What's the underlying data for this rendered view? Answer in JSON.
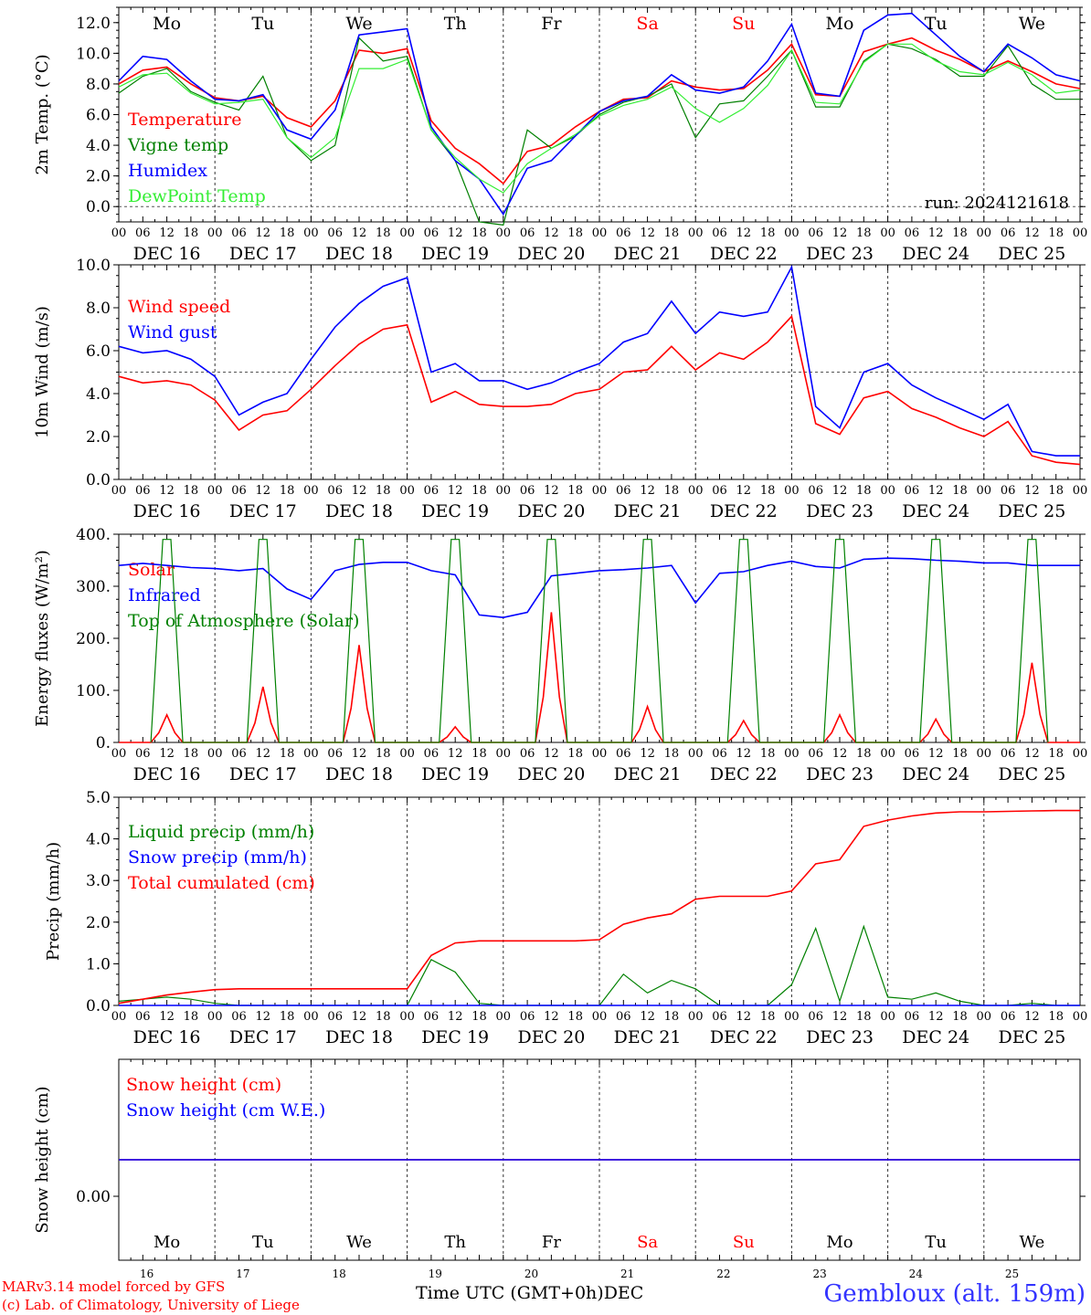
{
  "meta": {
    "station": "Gembloux (alt. 159m)",
    "credit_lines": [
      "MARv3.14 model forced by GFS",
      "(c) Lab. of Climatology, University of Liege"
    ],
    "time_axis_label": "Time UTC (GMT+0h)",
    "month_label": "DEC",
    "run_label": "run: 2024121618"
  },
  "days": {
    "weekday_labels": [
      "Mo",
      "Tu",
      "We",
      "Th",
      "Fr",
      "Sa",
      "Su",
      "Mo",
      "Tu",
      "We"
    ],
    "weekend_flags": [
      false,
      false,
      false,
      false,
      false,
      true,
      true,
      false,
      false,
      false
    ],
    "date_labels": [
      "DEC 16",
      "DEC 17",
      "DEC 18",
      "DEC 19",
      "DEC 20",
      "DEC 21",
      "DEC 22",
      "DEC 23",
      "DEC 24",
      "DEC 25"
    ],
    "day_numbers": [
      "16",
      "17",
      "18",
      "19",
      "20",
      "21",
      "22",
      "23",
      "24",
      "25"
    ],
    "hour_tick_labels": [
      "00",
      "06",
      "12",
      "18"
    ],
    "final_tick_label": "00"
  },
  "colors": {
    "red": "#ff0000",
    "green": "#008000",
    "blue": "#0000ff",
    "lightgreen": "#33ee33",
    "weekend": "#ff0000",
    "station": "#3333ff"
  },
  "chart_data": [
    {
      "id": "temperature",
      "type": "line",
      "ylabel": "2m Temp. (°C)",
      "ylim": [
        -1.0,
        13.0
      ],
      "y_ticks": [
        "0.0",
        "2.0",
        "4.0",
        "6.0",
        "8.0",
        "10.0",
        "12.0"
      ],
      "y_tick_values": [
        0,
        2,
        4,
        6,
        8,
        10,
        12
      ],
      "reference_line": 0,
      "x_hours": [
        0,
        6,
        12,
        18,
        24,
        30,
        36,
        42,
        48,
        54,
        60,
        66,
        72,
        78,
        84,
        90,
        96,
        102,
        108,
        114,
        120,
        126,
        132,
        138,
        144,
        150,
        156,
        162,
        168,
        174,
        180,
        186,
        192,
        198,
        204,
        210,
        216,
        222,
        228,
        234,
        240
      ],
      "series": [
        {
          "name": "Temperature",
          "color": "red",
          "values": [
            8.0,
            8.9,
            9.1,
            8.0,
            7.1,
            6.9,
            7.2,
            5.8,
            5.2,
            6.9,
            10.2,
            10.0,
            10.3,
            5.6,
            3.8,
            2.8,
            1.5,
            3.6,
            4.0,
            5.2,
            6.2,
            7.0,
            7.1,
            8.2,
            7.8,
            7.6,
            7.7,
            8.9,
            10.6,
            7.3,
            7.2,
            10.1,
            10.6,
            11.0,
            10.2,
            9.6,
            8.8,
            9.5,
            8.8,
            8.0,
            7.7
          ]
        },
        {
          "name": "Vigne temp",
          "color": "green",
          "values": [
            7.4,
            8.5,
            9.0,
            7.5,
            6.8,
            6.3,
            8.5,
            4.5,
            3.0,
            4.0,
            11.0,
            9.5,
            9.8,
            5.0,
            3.0,
            -1.0,
            -1.2,
            5.0,
            3.8,
            4.6,
            6.0,
            6.8,
            7.2,
            8.0,
            4.5,
            6.7,
            6.9,
            8.5,
            10.2,
            6.5,
            6.5,
            9.5,
            10.6,
            10.3,
            9.6,
            8.5,
            8.5,
            10.5,
            8.0,
            7.0,
            7.0
          ]
        },
        {
          "name": "Humidex",
          "color": "blue",
          "values": [
            8.2,
            9.8,
            9.6,
            8.2,
            7.0,
            6.9,
            7.3,
            5.0,
            4.4,
            6.3,
            11.2,
            11.4,
            11.6,
            5.2,
            3.0,
            1.8,
            -0.5,
            2.5,
            3.0,
            4.6,
            6.2,
            6.9,
            7.2,
            8.6,
            7.6,
            7.4,
            7.8,
            9.5,
            11.9,
            7.4,
            7.2,
            11.5,
            12.5,
            12.6,
            11.2,
            9.8,
            8.8,
            10.6,
            9.7,
            8.6,
            8.2
          ]
        },
        {
          "name": "DewPoint Temp",
          "color": "lightgreen",
          "values": [
            7.8,
            8.6,
            8.7,
            7.4,
            6.7,
            6.8,
            7.0,
            4.5,
            3.2,
            4.5,
            9.0,
            9.0,
            9.6,
            5.0,
            3.2,
            1.8,
            0.9,
            2.8,
            3.8,
            4.7,
            5.9,
            6.6,
            7.0,
            7.8,
            6.4,
            5.5,
            6.4,
            7.9,
            10.2,
            6.8,
            6.7,
            9.4,
            10.6,
            10.6,
            9.5,
            8.8,
            8.6,
            9.4,
            8.6,
            7.4,
            7.6
          ]
        }
      ]
    },
    {
      "id": "wind",
      "type": "line",
      "ylabel": "10m Wind (m/s)",
      "ylim": [
        0.0,
        10.0
      ],
      "y_ticks": [
        "0.0",
        "2.0",
        "4.0",
        "6.0",
        "8.0",
        "10.0"
      ],
      "y_tick_values": [
        0,
        2,
        4,
        6,
        8,
        10
      ],
      "reference_line": 5,
      "x_hours": [
        0,
        6,
        12,
        18,
        24,
        30,
        36,
        42,
        48,
        54,
        60,
        66,
        72,
        78,
        84,
        90,
        96,
        102,
        108,
        114,
        120,
        126,
        132,
        138,
        144,
        150,
        156,
        162,
        168,
        174,
        180,
        186,
        192,
        198,
        204,
        210,
        216,
        222,
        228,
        234,
        240
      ],
      "series": [
        {
          "name": "Wind speed",
          "color": "red",
          "values": [
            4.8,
            4.5,
            4.6,
            4.4,
            3.7,
            2.3,
            3.0,
            3.2,
            4.2,
            5.3,
            6.3,
            7.0,
            7.2,
            3.6,
            4.1,
            3.5,
            3.4,
            3.4,
            3.5,
            4.0,
            4.2,
            5.0,
            5.1,
            6.2,
            5.1,
            5.9,
            5.6,
            6.4,
            7.6,
            2.6,
            2.1,
            3.8,
            4.1,
            3.3,
            2.9,
            2.4,
            2.0,
            2.7,
            1.1,
            0.8,
            0.7
          ]
        },
        {
          "name": "Wind gust",
          "color": "blue",
          "values": [
            6.2,
            5.9,
            6.0,
            5.6,
            4.8,
            3.0,
            3.6,
            4.0,
            5.6,
            7.1,
            8.2,
            9.0,
            9.4,
            5.0,
            5.4,
            4.6,
            4.6,
            4.2,
            4.5,
            5.0,
            5.4,
            6.4,
            6.8,
            8.3,
            6.8,
            7.8,
            7.6,
            7.8,
            9.9,
            3.4,
            2.4,
            5.0,
            5.4,
            4.4,
            3.8,
            3.3,
            2.8,
            3.5,
            1.3,
            1.1,
            1.1
          ]
        }
      ]
    },
    {
      "id": "energy",
      "type": "line",
      "ylabel": "Energy fluxes (W/m²)",
      "ylim": [
        0,
        400
      ],
      "y_ticks": [
        "0.",
        "100.",
        "200.",
        "300.",
        "400."
      ],
      "y_tick_values": [
        0,
        100,
        200,
        300,
        400
      ],
      "x_hours": [
        0,
        6,
        12,
        18,
        24,
        30,
        36,
        42,
        48,
        54,
        60,
        66,
        72,
        78,
        84,
        90,
        96,
        102,
        108,
        114,
        120,
        126,
        132,
        138,
        144,
        150,
        156,
        162,
        168,
        174,
        180,
        186,
        192,
        198,
        204,
        210,
        216,
        222,
        228,
        234,
        240
      ],
      "series": [
        {
          "name": "Solar",
          "color": "red",
          "peaks": [
            {
              "day": 0,
              "value": 53
            },
            {
              "day": 1,
              "value": 107
            },
            {
              "day": 2,
              "value": 187
            },
            {
              "day": 3,
              "value": 30
            },
            {
              "day": 4,
              "value": 250
            },
            {
              "day": 5,
              "value": 69
            },
            {
              "day": 6,
              "value": 42
            },
            {
              "day": 7,
              "value": 53
            },
            {
              "day": 8,
              "value": 45
            },
            {
              "day": 9,
              "value": 153
            }
          ]
        },
        {
          "name": "Infrared",
          "color": "blue",
          "values": [
            340,
            344,
            340,
            336,
            334,
            330,
            334,
            295,
            275,
            330,
            342,
            346,
            346,
            330,
            322,
            245,
            240,
            250,
            320,
            325,
            330,
            332,
            335,
            340,
            268,
            325,
            328,
            340,
            348,
            338,
            335,
            352,
            354,
            353,
            350,
            348,
            345,
            345,
            340,
            340,
            340
          ]
        },
        {
          "name": "Top of Atmosphere (Solar)",
          "color": "green",
          "peak_value": 390,
          "daylight_start_hour": 8,
          "daylight_end_hour": 16
        }
      ]
    },
    {
      "id": "precip",
      "type": "line",
      "ylabel": "Precip (mm/h)",
      "ylim": [
        0.0,
        5.0
      ],
      "y_ticks": [
        "0.0",
        "1.0",
        "2.0",
        "3.0",
        "4.0",
        "5.0"
      ],
      "y_tick_values": [
        0,
        1,
        2,
        3,
        4,
        5
      ],
      "x_hours": [
        0,
        6,
        12,
        18,
        24,
        30,
        36,
        42,
        48,
        54,
        60,
        66,
        72,
        78,
        84,
        90,
        96,
        102,
        108,
        114,
        120,
        126,
        132,
        138,
        144,
        150,
        156,
        162,
        168,
        174,
        180,
        186,
        192,
        198,
        204,
        210,
        216,
        222,
        228,
        234,
        240
      ],
      "series": [
        {
          "name": "Liquid precip (mm/h)",
          "color": "green",
          "values": [
            0.1,
            0.15,
            0.2,
            0.15,
            0.05,
            0.0,
            0.0,
            0.0,
            0.0,
            0.0,
            0.0,
            0.0,
            0.0,
            1.1,
            0.8,
            0.05,
            0.0,
            0.0,
            0.0,
            0.0,
            0.0,
            0.75,
            0.3,
            0.6,
            0.4,
            0.0,
            0.0,
            0.0,
            0.5,
            1.85,
            0.1,
            1.9,
            0.2,
            0.15,
            0.3,
            0.1,
            0.0,
            0.0,
            0.05,
            0.0,
            0.0
          ]
        },
        {
          "name": "Snow precip (mm/h)",
          "color": "blue",
          "values": [
            0,
            0,
            0,
            0,
            0,
            0,
            0,
            0,
            0,
            0,
            0,
            0,
            0,
            0,
            0,
            0,
            0,
            0,
            0,
            0,
            0,
            0,
            0,
            0,
            0,
            0,
            0,
            0,
            0,
            0,
            0,
            0,
            0,
            0,
            0,
            0,
            0,
            0,
            0,
            0,
            0
          ]
        },
        {
          "name": "Total cumulated (cm)",
          "color": "red",
          "values": [
            0.05,
            0.15,
            0.25,
            0.32,
            0.38,
            0.4,
            0.4,
            0.4,
            0.4,
            0.4,
            0.4,
            0.4,
            0.4,
            1.2,
            1.5,
            1.55,
            1.55,
            1.55,
            1.55,
            1.55,
            1.58,
            1.95,
            2.1,
            2.2,
            2.55,
            2.62,
            2.62,
            2.62,
            2.75,
            3.4,
            3.5,
            4.3,
            4.45,
            4.55,
            4.62,
            4.65,
            4.65,
            4.66,
            4.67,
            4.68,
            4.68
          ]
        }
      ]
    },
    {
      "id": "snow",
      "type": "line",
      "ylabel": "Snow height (cm)",
      "y_ticks": [
        "0.00"
      ],
      "y_tick_values": [
        0
      ],
      "series": [
        {
          "name": "Snow height (cm)",
          "color": "red",
          "values": [
            0,
            0
          ]
        },
        {
          "name": "Snow height (cm W.E.)",
          "color": "blue",
          "values": [
            0,
            0
          ]
        }
      ]
    }
  ]
}
